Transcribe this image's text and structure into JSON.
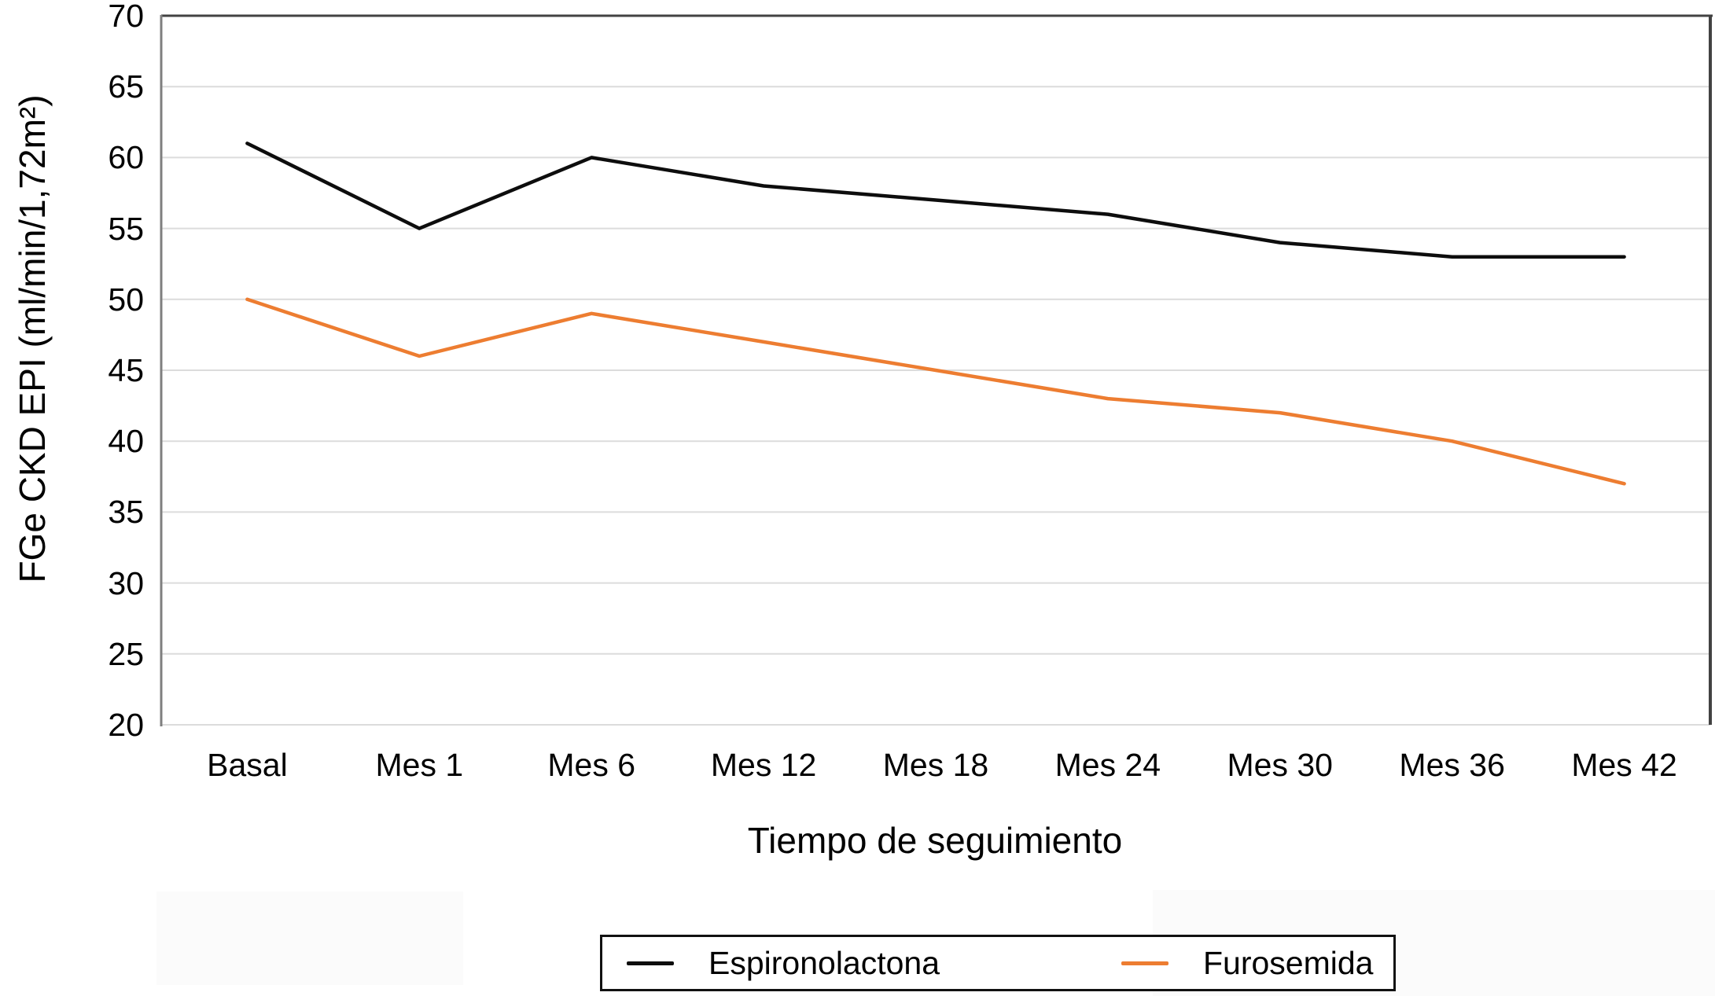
{
  "chart_data": {
    "type": "line",
    "categories": [
      "Basal",
      "Mes 1",
      "Mes 6",
      "Mes 12",
      "Mes 18",
      "Mes 24",
      "Mes 30",
      "Mes 36",
      "Mes 42"
    ],
    "series": [
      {
        "name": "Espironolactona",
        "color": "#0d0d0d",
        "values": [
          61,
          55,
          60,
          58,
          57,
          56,
          54,
          53,
          53
        ]
      },
      {
        "name": "Furosemida",
        "color": "#ED7D31",
        "values": [
          50,
          46,
          49,
          47,
          45,
          43,
          42,
          40,
          37
        ]
      }
    ],
    "title": "",
    "xlabel": "Tiempo de seguimiento",
    "ylabel": "FGe CKD EPI (ml/min/1,72m²)",
    "ylim": [
      20,
      70
    ],
    "yticks": [
      70,
      65,
      60,
      55,
      50,
      45,
      40,
      35,
      30,
      25,
      20
    ],
    "grid": "horizontal",
    "legend_position": "bottom"
  },
  "colors": {
    "gridline": "#dcdcdc",
    "axis_left": "#7f7f7f",
    "border_dark": "#424242",
    "background": "#ffffff"
  }
}
